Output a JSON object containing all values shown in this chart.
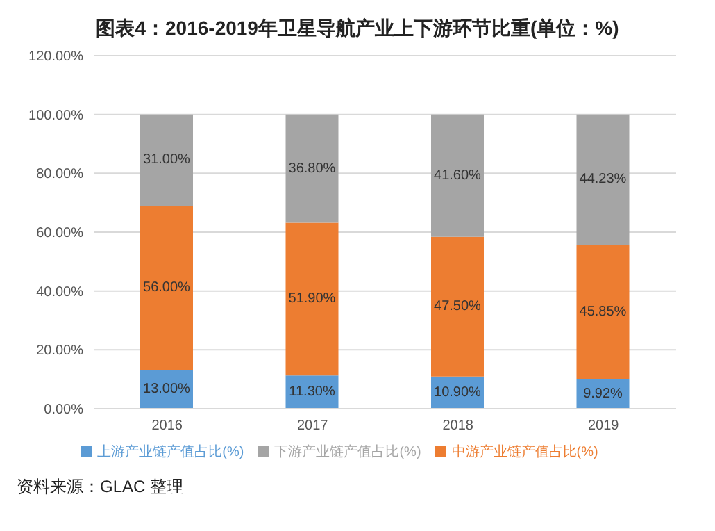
{
  "chart_data": {
    "type": "bar",
    "title": "图表4：2016-2019年卫星导航产业上下游环节比重(单位：%)",
    "categories": [
      "2016",
      "2017",
      "2018",
      "2019"
    ],
    "stacked": true,
    "series": [
      {
        "name": "上游产业链产值占比(%)",
        "color": "#5b9bd5",
        "values": [
          13.0,
          11.3,
          10.9,
          9.92
        ],
        "value_labels": [
          "13.00%",
          "11.30%",
          "10.90%",
          "9.92%"
        ]
      },
      {
        "name": "中游产业链产值占比(%)",
        "color": "#ed7d31",
        "values": [
          56.0,
          51.9,
          47.5,
          45.85
        ],
        "value_labels": [
          "56.00%",
          "51.90%",
          "47.50%",
          "45.85%"
        ]
      },
      {
        "name": "下游产业链产值占比(%)",
        "color": "#a5a5a5",
        "values": [
          31.0,
          36.8,
          41.6,
          44.23
        ],
        "value_labels": [
          "31.00%",
          "36.80%",
          "41.60%",
          "44.23%"
        ]
      }
    ],
    "ylim": [
      0,
      120
    ],
    "yticks": [
      {
        "value": 0,
        "label": "0.00%"
      },
      {
        "value": 20,
        "label": "20.00%"
      },
      {
        "value": 40,
        "label": "40.00%"
      },
      {
        "value": 60,
        "label": "60.00%"
      },
      {
        "value": 80,
        "label": "80.00%"
      },
      {
        "value": 100,
        "label": "100.00%"
      },
      {
        "value": 120,
        "label": "120.00%"
      }
    ],
    "grid": "y",
    "legend": "bottom",
    "annotations": [
      "资料来源：GLAC 整理"
    ]
  }
}
